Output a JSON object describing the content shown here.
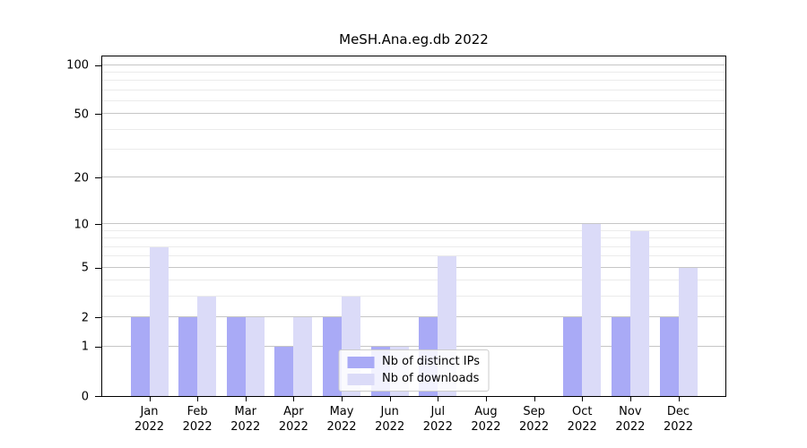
{
  "chart_data": {
    "type": "bar",
    "title": "MeSH.Ana.eg.db 2022",
    "categories": [
      {
        "month": "Jan",
        "year": "2022"
      },
      {
        "month": "Feb",
        "year": "2022"
      },
      {
        "month": "Mar",
        "year": "2022"
      },
      {
        "month": "Apr",
        "year": "2022"
      },
      {
        "month": "May",
        "year": "2022"
      },
      {
        "month": "Jun",
        "year": "2022"
      },
      {
        "month": "Jul",
        "year": "2022"
      },
      {
        "month": "Aug",
        "year": "2022"
      },
      {
        "month": "Sep",
        "year": "2022"
      },
      {
        "month": "Oct",
        "year": "2022"
      },
      {
        "month": "Nov",
        "year": "2022"
      },
      {
        "month": "Dec",
        "year": "2022"
      }
    ],
    "series": [
      {
        "name": "Nb of distinct IPs",
        "color": "#a9aaf6",
        "values": [
          2,
          2,
          2,
          1,
          2,
          1,
          2,
          0,
          0,
          2,
          2,
          2
        ]
      },
      {
        "name": "Nb of downloads",
        "color": "#dbdbf8",
        "values": [
          7,
          3,
          2,
          2,
          3,
          1,
          6,
          0,
          0,
          10,
          9,
          5
        ]
      }
    ],
    "xlabel": "",
    "ylabel": "",
    "yscale": "log1p",
    "ylim": [
      0,
      113
    ],
    "yticks_major": [
      0,
      1,
      2,
      5,
      10,
      20,
      50,
      100
    ],
    "yticks_minor": [
      3,
      4,
      6,
      7,
      8,
      9,
      30,
      40,
      60,
      70,
      80,
      90
    ],
    "grid": true,
    "legend_position": "lower center",
    "colors": {
      "grid_major": "#c6c6c6",
      "grid_minor": "#ebebeb",
      "axis": "#000000",
      "background": "#ffffff"
    }
  }
}
